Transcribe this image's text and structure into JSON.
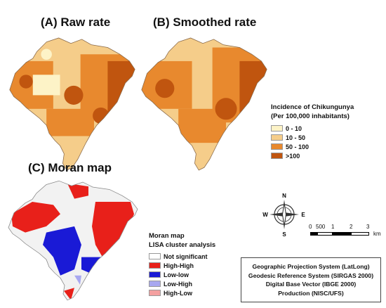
{
  "panels": {
    "raw": {
      "title": "(A) Raw rate"
    },
    "smoothed": {
      "title": "(B) Smoothed rate"
    },
    "moran": {
      "title": "(C) Moran map"
    }
  },
  "incidence_legend": {
    "title_line1": "Incidence of Chikungunya",
    "title_line2": "(Per 100,000 inhabitants)",
    "classes": [
      {
        "label": "0 - 10",
        "color": "#fdf3c7"
      },
      {
        "label": "10 - 50",
        "color": "#f5cd8a"
      },
      {
        "label": "50 - 100",
        "color": "#e8892e"
      },
      {
        "label": ">100",
        "color": "#c0550f"
      }
    ]
  },
  "moran_legend": {
    "title_line1": "Moran map",
    "title_line2": "LISA cluster analysis",
    "classes": [
      {
        "label": "Not significant",
        "color": "#ffffff"
      },
      {
        "label": "High-High",
        "color": "#e8201a"
      },
      {
        "label": "Low-low",
        "color": "#1a1ad6"
      },
      {
        "label": "Low-High",
        "color": "#a8a8f0"
      },
      {
        "label": "High-Low",
        "color": "#f4a0a0"
      }
    ]
  },
  "compass": {
    "n": "N",
    "s": "S",
    "e": "E",
    "w": "W"
  },
  "scale_bar": {
    "labels": [
      "0",
      "500",
      "1",
      "2",
      "3"
    ],
    "unit": "km"
  },
  "credits": [
    "Geographic Projection System (LatLong)",
    "Geodesic Reference System (SIRGAS 2000)",
    "Digital Base Vector (IBGE 2000)",
    "Production (NISC/UFS)"
  ]
}
